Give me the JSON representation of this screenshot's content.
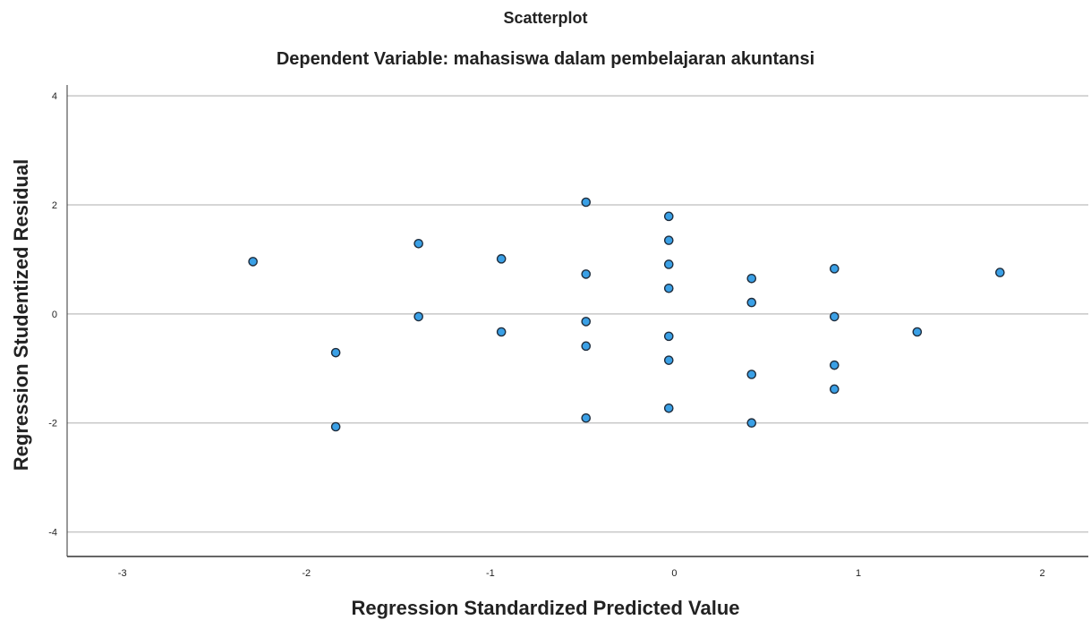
{
  "chart_data": {
    "type": "scatter",
    "title": "Scatterplot",
    "subtitle": "Dependent Variable: mahasiswa dalam pembelajaran akuntansi",
    "xlabel": "Regression Standardized Predicted Value",
    "ylabel": "Regression Studentized Residual",
    "xlim": [
      -3.3,
      2.25
    ],
    "ylim": [
      -4.45,
      4.2
    ],
    "x_ticks": [
      -3,
      -2,
      -1,
      0,
      1,
      2
    ],
    "y_ticks": [
      -4,
      -2,
      0,
      2,
      4
    ],
    "grid": "horizontal",
    "point_color": "#3aa0e6",
    "point_edge_color": "#1f2d3d",
    "points": [
      {
        "x": -2.29,
        "y": 0.96
      },
      {
        "x": -1.84,
        "y": -0.71
      },
      {
        "x": -1.84,
        "y": -2.07
      },
      {
        "x": -1.39,
        "y": 1.29
      },
      {
        "x": -1.39,
        "y": -0.05
      },
      {
        "x": -0.94,
        "y": 1.01
      },
      {
        "x": -0.94,
        "y": -0.33
      },
      {
        "x": -0.48,
        "y": 2.05
      },
      {
        "x": -0.48,
        "y": 0.73
      },
      {
        "x": -0.48,
        "y": -0.14
      },
      {
        "x": -0.48,
        "y": -0.59
      },
      {
        "x": -0.48,
        "y": -1.91
      },
      {
        "x": -0.03,
        "y": 1.79
      },
      {
        "x": -0.03,
        "y": 1.35
      },
      {
        "x": -0.03,
        "y": 0.91
      },
      {
        "x": -0.03,
        "y": 0.47
      },
      {
        "x": -0.03,
        "y": -0.41
      },
      {
        "x": -0.03,
        "y": -0.85
      },
      {
        "x": -0.03,
        "y": -1.73
      },
      {
        "x": 0.42,
        "y": 0.65
      },
      {
        "x": 0.42,
        "y": 0.21
      },
      {
        "x": 0.42,
        "y": -1.11
      },
      {
        "x": 0.42,
        "y": -2.0
      },
      {
        "x": 0.87,
        "y": 0.83
      },
      {
        "x": 0.87,
        "y": -0.05
      },
      {
        "x": 0.87,
        "y": -0.94
      },
      {
        "x": 0.87,
        "y": -1.38
      },
      {
        "x": 1.32,
        "y": -0.33
      },
      {
        "x": 1.77,
        "y": 0.76
      }
    ]
  }
}
